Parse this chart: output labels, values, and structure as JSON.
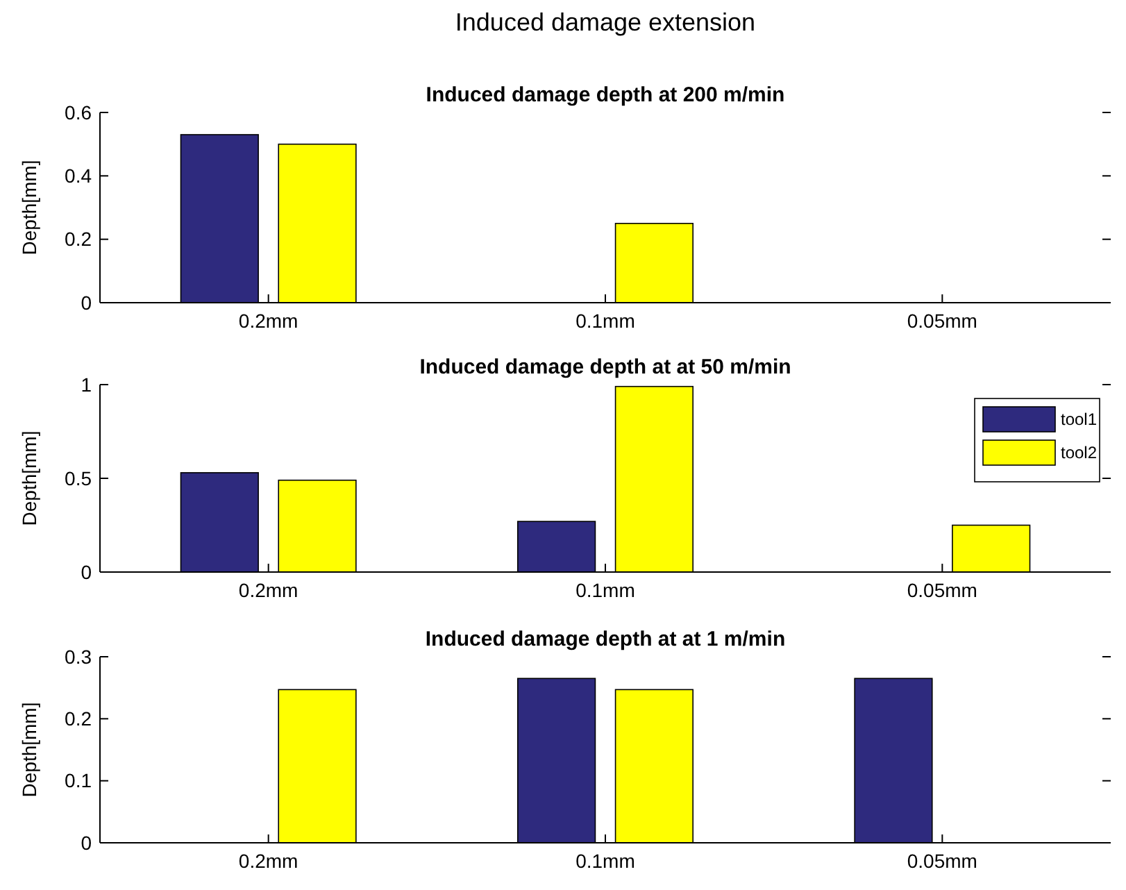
{
  "chart_data": [
    {
      "type": "other",
      "title": "Induced damage extension"
    },
    {
      "type": "bar",
      "title": "Induced damage depth at 200 m/min",
      "ylabel": "Depth[mm]",
      "categories": [
        "0.2mm",
        "0.1mm",
        "0.05mm"
      ],
      "ylim": [
        0,
        0.6
      ],
      "yticks": [
        0,
        0.2,
        0.4,
        0.6
      ],
      "series": [
        {
          "color": "#2e2a7e",
          "values": [
            0.53,
            0,
            0
          ]
        },
        {
          "color": "#ffff00",
          "values": [
            0.5,
            0.25,
            0
          ]
        }
      ]
    },
    {
      "type": "bar",
      "title": "Induced damage depth at at 50 m/min",
      "ylabel": "Depth[mm]",
      "categories": [
        "0.2mm",
        "0.1mm",
        "0.05mm"
      ],
      "ylim": [
        0,
        1
      ],
      "yticks": [
        0,
        0.5,
        1
      ],
      "legend": "top right",
      "series": [
        {
          "name": "tool1",
          "color": "#2e2a7e",
          "values": [
            0.53,
            0.27,
            0
          ]
        },
        {
          "name": "tool2",
          "color": "#ffff00",
          "values": [
            0.49,
            0.99,
            0.25
          ]
        }
      ]
    },
    {
      "type": "bar",
      "title": "Induced damage depth at at 1 m/min",
      "ylabel": "Depth[mm]",
      "categories": [
        "0.2mm",
        "0.1mm",
        "0.05mm"
      ],
      "ylim": [
        0,
        0.3
      ],
      "yticks": [
        0,
        0.1,
        0.2,
        0.3
      ],
      "series": [
        {
          "color": "#2e2a7e",
          "values": [
            0,
            0.265,
            0.265
          ]
        },
        {
          "color": "#ffff00",
          "values": [
            0.247,
            0.247,
            0
          ]
        }
      ]
    }
  ]
}
